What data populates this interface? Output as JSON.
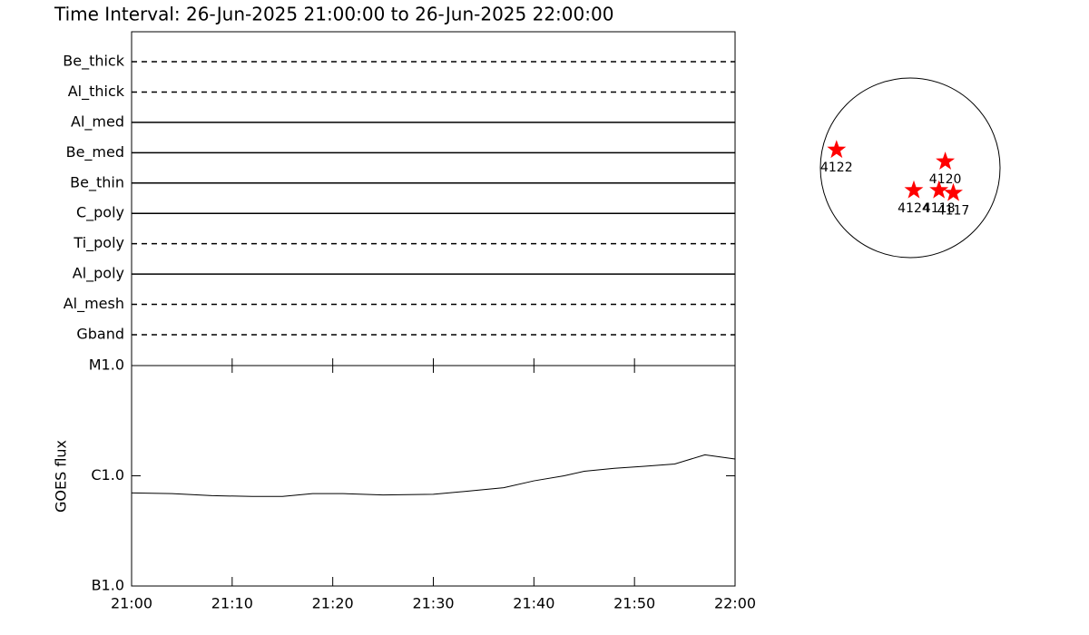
{
  "title": "Time Interval: 26-Jun-2025 21:00:00 to 26-Jun-2025 22:00:00",
  "chart_data": [
    {
      "type": "timeline",
      "categories": [
        "Be_thick",
        "Al_thick",
        "Al_med",
        "Be_med",
        "Be_thin",
        "C_poly",
        "Ti_poly",
        "Al_poly",
        "Al_mesh",
        "Gband"
      ],
      "styles": [
        "dashed",
        "dashed",
        "solid",
        "solid",
        "solid",
        "solid",
        "dashed",
        "solid",
        "dashed",
        "dashed"
      ],
      "color": "#000000"
    },
    {
      "type": "line",
      "y_label": "GOES flux",
      "log_scale": true,
      "color": "#000000",
      "x": [
        "21:00",
        "21:04",
        "21:08",
        "21:12",
        "21:15",
        "21:18",
        "21:21",
        "21:25",
        "21:30",
        "21:33",
        "21:37",
        "21:40",
        "21:43",
        "21:45",
        "21:48",
        "21:51",
        "21:54",
        "21:57",
        "22:00"
      ],
      "values": [
        7e-07,
        6.9e-07,
        6.6e-07,
        6.5e-07,
        6.5e-07,
        6.9e-07,
        6.9e-07,
        6.7e-07,
        6.8e-07,
        7.2e-07,
        7.8e-07,
        9e-07,
        1e-06,
        1.1e-06,
        1.17e-06,
        1.22e-06,
        1.28e-06,
        1.55e-06,
        1.42e-06
      ],
      "xlim": [
        "21:00",
        "22:00"
      ],
      "xticks": [
        "21:00",
        "21:10",
        "21:20",
        "21:30",
        "21:40",
        "21:50",
        "22:00"
      ],
      "ylim": [
        1e-07,
        1e-05
      ],
      "yticks": [
        {
          "value": 1e-07,
          "label": "B1.0"
        },
        {
          "value": 1e-06,
          "label": "C1.0"
        },
        {
          "value": 1e-05,
          "label": "M1.0"
        }
      ]
    },
    {
      "type": "scatter",
      "color": "#ff0000",
      "labels": [
        "4122",
        "4120",
        "4124",
        "4118",
        "4117"
      ],
      "x": [
        -0.82,
        0.39,
        0.04,
        0.32,
        0.48
      ],
      "y": [
        0.2,
        0.07,
        -0.25,
        -0.25,
        -0.28
      ],
      "xlim": [
        -1,
        1
      ],
      "ylim": [
        -1,
        1
      ]
    }
  ]
}
